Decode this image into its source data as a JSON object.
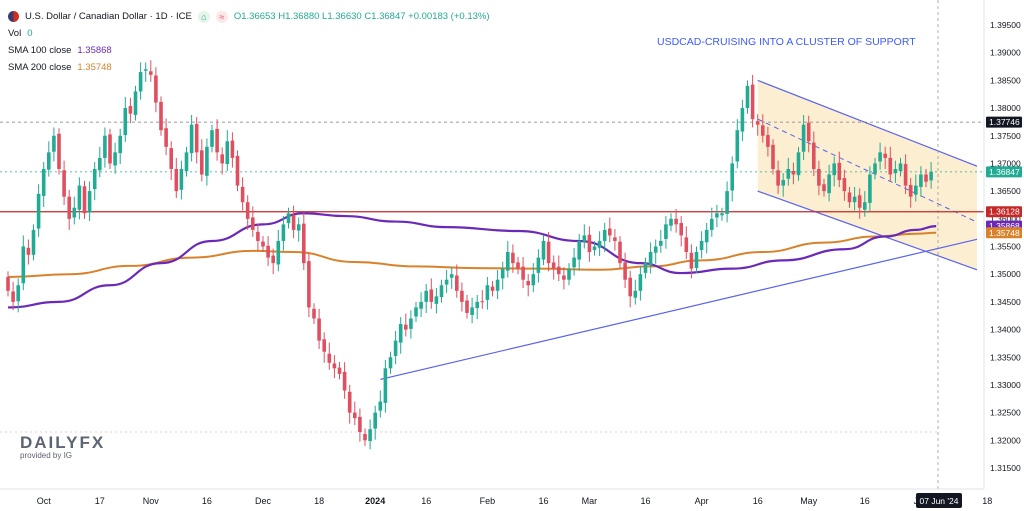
{
  "legend": {
    "symbol_line": "U.S. Dollar / Canadian Dollar · 1D · ICE",
    "ohlc": "O1.36653 H1.36880 L1.36630 C1.36847 +0.00183 (+0.13%)",
    "vol_label": "Vol",
    "vol_value": "0",
    "sma100_label": "SMA 100 close",
    "sma100_value": "1.35868",
    "sma200_label": "SMA 200 close",
    "sma200_value": "1.35748",
    "badge1": "⌂",
    "badge2": "≈"
  },
  "annotation": "USDCAD-CRUISING INTO A CLUSTER OF SUPPORT",
  "logo": {
    "brand": "DAILYFX",
    "tagline": "provided by IG"
  },
  "colors": {
    "up": "#22ab94",
    "down": "#e04f5f",
    "sma100": "#6a29b8",
    "sma200": "#d9822b",
    "trend": "#5b63ee",
    "support": "#c62828",
    "channel_fill": "#fcebc8"
  },
  "chart_data": {
    "type": "candlestick",
    "ylim": [
      1.315,
      1.395
    ],
    "y_ticks": [
      "1.39500",
      "1.39000",
      "1.38500",
      "1.38000",
      "1.37500",
      "1.37000",
      "1.36500",
      "1.36000",
      "1.35500",
      "1.35000",
      "1.34500",
      "1.34000",
      "1.33500",
      "1.33000",
      "1.32500",
      "1.32000",
      "1.31500"
    ],
    "x_ticks": [
      {
        "label": "Oct",
        "i": 7
      },
      {
        "label": "17",
        "i": 18
      },
      {
        "label": "Nov",
        "i": 28
      },
      {
        "label": "16",
        "i": 39
      },
      {
        "label": "Dec",
        "i": 50
      },
      {
        "label": "18",
        "i": 61
      },
      {
        "label": "2024",
        "i": 72
      },
      {
        "label": "16",
        "i": 82
      },
      {
        "label": "Feb",
        "i": 94
      },
      {
        "label": "16",
        "i": 105
      },
      {
        "label": "Mar",
        "i": 114
      },
      {
        "label": "16",
        "i": 125
      },
      {
        "label": "Apr",
        "i": 136
      },
      {
        "label": "16",
        "i": 147
      },
      {
        "label": "May",
        "i": 157
      },
      {
        "label": "16",
        "i": 168
      },
      {
        "label": "Jun",
        "i": 179
      },
      {
        "label": "18",
        "i": 192
      }
    ],
    "date_label": "07 Jun '24",
    "price_labels": [
      {
        "text": "1.37746",
        "value": 1.37746,
        "bg": "#131722",
        "fg": "#ffffff"
      },
      {
        "text": "1.36847",
        "value": 1.36847,
        "bg": "#22ab94",
        "fg": "#ffffff"
      },
      {
        "text": "1.36128",
        "value": 1.36128,
        "bg": "#c62828",
        "fg": "#ffffff"
      },
      {
        "text": "1.35868",
        "value": 1.35868,
        "bg": "#6a29b8",
        "fg": "#ffffff"
      },
      {
        "text": "1.35748",
        "value": 1.35748,
        "bg": "#d9822b",
        "fg": "#ffffff"
      }
    ],
    "support_level": 1.36128,
    "last_close": 1.36847,
    "dashed_high": 1.37746,
    "closes": [
      1.347,
      1.345,
      1.348,
      1.355,
      1.3535,
      1.358,
      1.3645,
      1.369,
      1.372,
      1.375,
      1.369,
      1.364,
      1.36,
      1.362,
      1.366,
      1.361,
      1.365,
      1.369,
      1.371,
      1.375,
      1.37,
      1.372,
      1.375,
      1.38,
      1.379,
      1.383,
      1.3865,
      1.387,
      1.386,
      1.381,
      1.376,
      1.373,
      1.369,
      1.365,
      1.369,
      1.372,
      1.377,
      1.372,
      1.368,
      1.373,
      1.376,
      1.372,
      1.37,
      1.374,
      1.371,
      1.366,
      1.363,
      1.36,
      1.358,
      1.356,
      1.355,
      1.353,
      1.352,
      1.356,
      1.359,
      1.361,
      1.358,
      1.359,
      1.352,
      1.344,
      1.342,
      1.338,
      1.336,
      1.334,
      1.333,
      1.332,
      1.329,
      1.325,
      1.324,
      1.3215,
      1.32,
      1.322,
      1.325,
      1.327,
      1.333,
      1.335,
      1.338,
      1.341,
      1.34,
      1.342,
      1.344,
      1.345,
      1.347,
      1.345,
      1.346,
      1.348,
      1.349,
      1.35,
      1.347,
      1.345,
      1.343,
      1.344,
      1.345,
      1.345,
      1.348,
      1.347,
      1.349,
      1.351,
      1.354,
      1.352,
      1.351,
      1.349,
      1.348,
      1.35,
      1.353,
      1.356,
      1.352,
      1.351,
      1.35,
      1.349,
      1.351,
      1.353,
      1.356,
      1.357,
      1.354,
      1.355,
      1.356,
      1.358,
      1.357,
      1.356,
      1.352,
      1.349,
      1.346,
      1.347,
      1.35,
      1.352,
      1.354,
      1.355,
      1.356,
      1.359,
      1.36,
      1.359,
      1.357,
      1.354,
      1.351,
      1.354,
      1.356,
      1.358,
      1.36,
      1.361,
      1.361,
      1.365,
      1.37,
      1.376,
      1.38,
      1.384,
      1.378,
      1.377,
      1.375,
      1.373,
      1.369,
      1.366,
      1.367,
      1.369,
      1.368,
      1.372,
      1.377,
      1.374,
      1.369,
      1.366,
      1.365,
      1.368,
      1.37,
      1.367,
      1.365,
      1.363,
      1.364,
      1.362,
      1.363,
      1.368,
      1.37,
      1.372,
      1.371,
      1.368,
      1.369,
      1.37,
      1.366,
      1.364,
      1.366,
      1.368,
      1.3667,
      1.3685
    ],
    "sma100": [
      {
        "i": 0,
        "v": 1.344
      },
      {
        "i": 10,
        "v": 1.345
      },
      {
        "i": 20,
        "v": 1.348
      },
      {
        "i": 30,
        "v": 1.352
      },
      {
        "i": 40,
        "v": 1.356
      },
      {
        "i": 50,
        "v": 1.359
      },
      {
        "i": 58,
        "v": 1.361
      },
      {
        "i": 66,
        "v": 1.3605
      },
      {
        "i": 76,
        "v": 1.3595
      },
      {
        "i": 86,
        "v": 1.3585
      },
      {
        "i": 100,
        "v": 1.3578
      },
      {
        "i": 112,
        "v": 1.356
      },
      {
        "i": 124,
        "v": 1.352
      },
      {
        "i": 132,
        "v": 1.3502
      },
      {
        "i": 142,
        "v": 1.351
      },
      {
        "i": 152,
        "v": 1.3525
      },
      {
        "i": 164,
        "v": 1.3545
      },
      {
        "i": 172,
        "v": 1.3568
      },
      {
        "i": 178,
        "v": 1.358
      },
      {
        "i": 182,
        "v": 1.35868
      }
    ],
    "sma200": [
      {
        "i": 0,
        "v": 1.3495
      },
      {
        "i": 12,
        "v": 1.35
      },
      {
        "i": 24,
        "v": 1.3515
      },
      {
        "i": 36,
        "v": 1.353
      },
      {
        "i": 48,
        "v": 1.3542
      },
      {
        "i": 56,
        "v": 1.354
      },
      {
        "i": 68,
        "v": 1.3522
      },
      {
        "i": 80,
        "v": 1.3514
      },
      {
        "i": 92,
        "v": 1.3511
      },
      {
        "i": 104,
        "v": 1.351
      },
      {
        "i": 116,
        "v": 1.3508
      },
      {
        "i": 126,
        "v": 1.3514
      },
      {
        "i": 136,
        "v": 1.3525
      },
      {
        "i": 148,
        "v": 1.354
      },
      {
        "i": 160,
        "v": 1.3557
      },
      {
        "i": 170,
        "v": 1.3568
      },
      {
        "i": 178,
        "v": 1.3573
      },
      {
        "i": 182,
        "v": 1.35748
      }
    ],
    "uptrend": [
      {
        "i": 73,
        "v": 1.331
      },
      {
        "i": 190,
        "v": 1.3563
      }
    ],
    "channel": {
      "start_i": 147,
      "end_i": 190,
      "top": [
        1.385,
        1.3695
      ],
      "bottom": [
        1.365,
        1.3508
      ],
      "mid": [
        1.378,
        1.3594
      ]
    }
  }
}
